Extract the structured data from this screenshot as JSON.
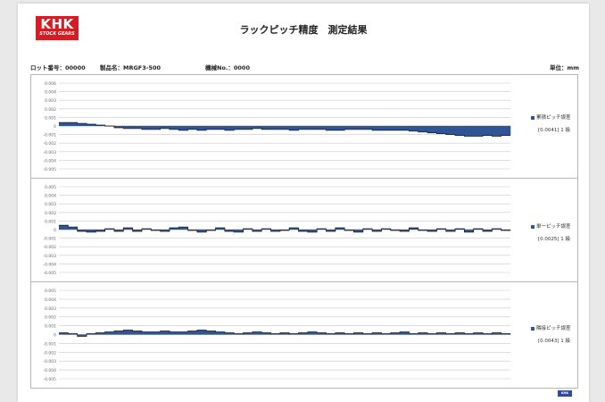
{
  "header": {
    "logo_main": "KHK",
    "logo_sub": "STOCK GEARS",
    "title": "ラックピッチ精度　測定結果"
  },
  "info": {
    "lot": "ロット番号：00000",
    "product": "製品名：MRGF3-500",
    "machine": "機械No.：0000",
    "unit": "単位：mm"
  },
  "chart_data": [
    {
      "type": "area",
      "series": [
        {
          "name": "累積ピッチ誤差",
          "values": [
            0.0004,
            0.0004,
            0.0003,
            0.0002,
            0.0001,
            0,
            -0.0002,
            -0.0003,
            -0.0003,
            -0.0004,
            -0.0004,
            -0.0003,
            -0.0004,
            -0.0005,
            -0.0004,
            -0.0005,
            -0.0004,
            -0.0004,
            -0.0005,
            -0.0004,
            -0.0004,
            -0.0003,
            -0.0004,
            -0.0004,
            -0.0004,
            -0.0005,
            -0.0004,
            -0.0004,
            -0.0004,
            -0.0005,
            -0.0005,
            -0.0004,
            -0.0004,
            -0.0004,
            -0.0005,
            -0.0005,
            -0.0005,
            -0.0005,
            -0.0006,
            -0.0007,
            -0.0008,
            -0.0009,
            -0.001,
            -0.0011,
            -0.0012,
            -0.0012,
            -0.0011,
            -0.0012,
            -0.0011
          ]
        }
      ],
      "ylim": [
        -0.006,
        0.006
      ],
      "ticks": [
        "0.006",
        "0.004",
        "0.003",
        "0.002",
        "0.001",
        "0",
        "-0.001",
        "-0.002",
        "-0.003",
        "-0.004",
        "-0.005"
      ],
      "legend_label": "累積ピッチ誤差",
      "grade": "[0.0041] 1 級",
      "grid": true
    },
    {
      "type": "area",
      "series": [
        {
          "name": "単一ピッチ誤差",
          "values": [
            0.0005,
            0.0003,
            -0.0002,
            -0.0003,
            -0.0002,
            0.0001,
            -0.0002,
            0.0002,
            -0.0002,
            0.0001,
            -0.0001,
            -0.0002,
            0.0002,
            0.0003,
            -0.0001,
            -0.0003,
            -0.0001,
            0.0002,
            -0.0002,
            -0.0003,
            0.0001,
            -0.0002,
            0.0001,
            -0.0002,
            -0.0001,
            0.0002,
            -0.0002,
            -0.0003,
            0.0001,
            -0.0002,
            0.0002,
            -0.0001,
            -0.0003,
            0.0001,
            -0.0002,
            0.0001,
            -0.0001,
            -0.0002,
            0.0002,
            -0.0001,
            -0.0002,
            0.0001,
            -0.0002,
            0.0001,
            -0.0003,
            0.0001,
            -0.0002,
            0.0001,
            -0.0001
          ]
        }
      ],
      "ylim": [
        -0.006,
        0.006
      ],
      "ticks": [
        "0.005",
        "0.004",
        "0.003",
        "0.002",
        "0.001",
        "0",
        "-0.001",
        "-0.002",
        "-0.003",
        "-0.004",
        "-0.005"
      ],
      "legend_label": "単一ピッチ誤差",
      "grade": "[0.0025] 1 級",
      "grid": true
    },
    {
      "type": "area",
      "series": [
        {
          "name": "隣接ピッチ誤差",
          "values": [
            0.0002,
            0.0001,
            -0.0002,
            0.0001,
            0.0002,
            0.0003,
            0.0004,
            0.0005,
            0.0004,
            0.0003,
            0.0003,
            0.0004,
            0.0003,
            0.0003,
            0.0004,
            0.0005,
            0.0004,
            0.0003,
            0.0002,
            0.0001,
            0.0002,
            0.0003,
            0.0002,
            0.0001,
            0.0002,
            0.0001,
            0.0002,
            0.0003,
            0.0002,
            0.0001,
            0.0002,
            0.0001,
            0.0002,
            0.0001,
            0.0002,
            0.0001,
            0.0002,
            0.0003,
            0.0001,
            0.0002,
            0.0001,
            0.0002,
            0.0001,
            0.0002,
            0.0001,
            0.0002,
            0.0001,
            0.0002,
            0.0001
          ]
        }
      ],
      "ylim": [
        -0.006,
        0.006
      ],
      "ticks": [
        "0.005",
        "0.004",
        "0.003",
        "0.002",
        "0.001",
        "0",
        "-0.001",
        "-0.002",
        "-0.003",
        "-0.004",
        "-0.005"
      ],
      "legend_label": "隣接ピッチ誤差",
      "grade": "[0.0043] 1 級",
      "grid": true
    }
  ],
  "footer": {
    "mark": "KHK"
  }
}
